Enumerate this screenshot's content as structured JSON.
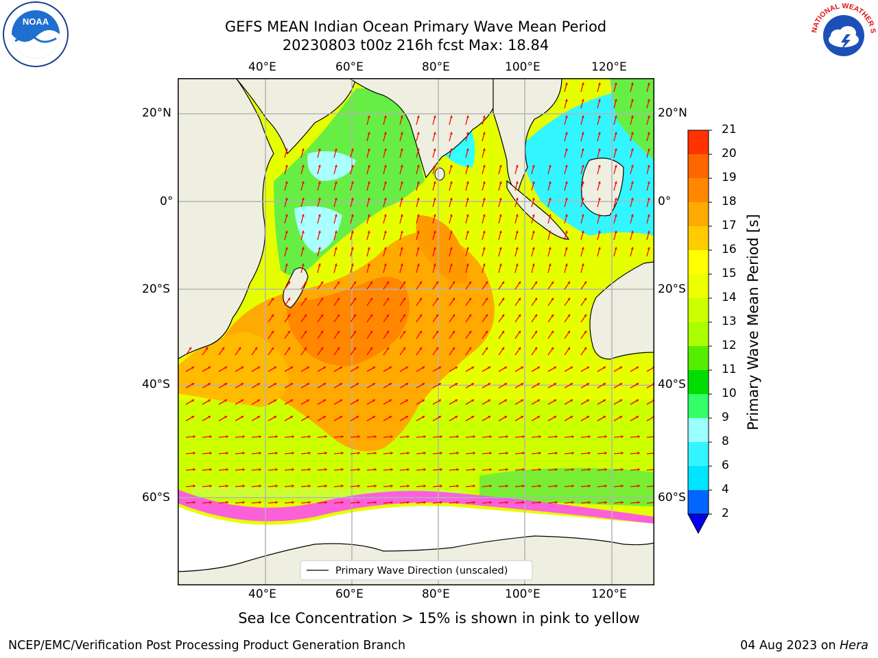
{
  "title": {
    "line1": "GEFS MEAN Indian Ocean Primary Wave Mean Period",
    "line2": "20230803 t00z 216h fcst   Max: 18.84"
  },
  "logos": {
    "left": "noaa-logo",
    "right": "national-weather-service-logo",
    "left_text": "NOAA",
    "right_text": "NATIONAL WEATHER SERVICE"
  },
  "map": {
    "lon_labels": [
      "40°E",
      "60°E",
      "80°E",
      "100°E",
      "120°E"
    ],
    "lat_labels": [
      "20°N",
      "0°",
      "20°S",
      "40°S",
      "60°S"
    ],
    "legend_label": "Primary Wave Direction (unscaled)",
    "arrow_color": "#ff0000",
    "land_color": "#efefe1",
    "ice_color": "#ff00ff"
  },
  "colorbar": {
    "title": "Primary Wave Mean Period [s]",
    "levels": [
      "2",
      "4",
      "6",
      "8",
      "9",
      "10",
      "11",
      "12",
      "13",
      "14",
      "15",
      "16",
      "17",
      "18",
      "19",
      "20",
      "21"
    ],
    "colors": [
      "#0066ff",
      "#00e5ff",
      "#33f5ff",
      "#99ffff",
      "#33ff66",
      "#00dd00",
      "#55ee00",
      "#aaff00",
      "#ccff00",
      "#eeff00",
      "#ffff00",
      "#ffcc00",
      "#ffaa00",
      "#ff8800",
      "#ff6600",
      "#ff3300"
    ],
    "extend_min_color": "#0000ee"
  },
  "caption": "Sea Ice Concentration > 15% is shown in pink to yellow",
  "footer": {
    "left": "NCEP/EMC/Verification Post Processing Product Generation Branch",
    "right_prefix": "04 Aug 2023 on ",
    "right_italic": "Hera"
  }
}
